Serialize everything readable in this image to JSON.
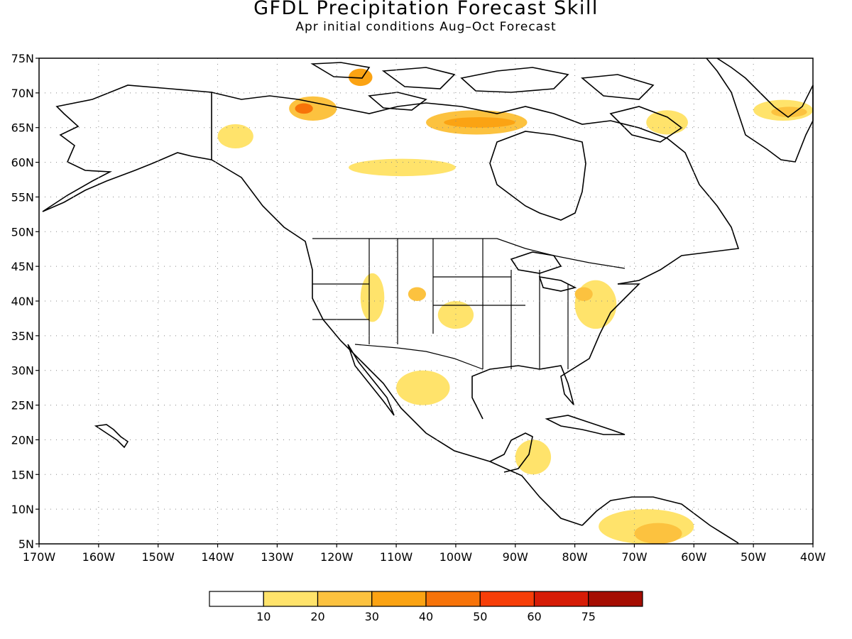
{
  "title": "GFDL Precipitation Forecast Skill",
  "subtitle": "Apr initial conditions  Aug–Oct Forecast",
  "map": {
    "lon_range": [
      -170,
      -40
    ],
    "lat_range": [
      5,
      75
    ],
    "lat_labels": [
      "75N",
      "70N",
      "65N",
      "60N",
      "55N",
      "50N",
      "45N",
      "40N",
      "35N",
      "30N",
      "25N",
      "20N",
      "15N",
      "10N",
      "5N"
    ],
    "lon_labels": [
      "170W",
      "160W",
      "150W",
      "140W",
      "130W",
      "120W",
      "110W",
      "100W",
      "90W",
      "80W",
      "70W",
      "60W",
      "50W",
      "40W"
    ],
    "gridlines": "dotted"
  },
  "legend": {
    "labels": [
      "10",
      "20",
      "30",
      "40",
      "50",
      "60",
      "75"
    ],
    "colors": [
      "#ffffff",
      "#ffe36b",
      "#fcc23f",
      "#fba313",
      "#f77309",
      "#f73e08",
      "#d61c06",
      "#a50d02"
    ]
  },
  "skill_regions": [
    {
      "lon": [
        -128,
        -120
      ],
      "lat": [
        66,
        69.5
      ],
      "level": 2,
      "name": "nw-canada-1"
    },
    {
      "lon": [
        -127,
        -124
      ],
      "lat": [
        67,
        68.5
      ],
      "level": 4,
      "name": "nw-canada-core"
    },
    {
      "lon": [
        -118,
        -114
      ],
      "lat": [
        71,
        73.5
      ],
      "level": 3,
      "name": "banks-island"
    },
    {
      "lon": [
        -140,
        -134
      ],
      "lat": [
        62,
        65.5
      ],
      "level": 1,
      "name": "yukon"
    },
    {
      "lon": [
        -105,
        -88
      ],
      "lat": [
        64,
        67.5
      ],
      "level": 2,
      "name": "nunavut-1"
    },
    {
      "lon": [
        -102,
        -90
      ],
      "lat": [
        65,
        66.5
      ],
      "level": 3,
      "name": "nunavut-core"
    },
    {
      "lon": [
        -118,
        -100
      ],
      "lat": [
        58,
        60.5
      ],
      "level": 1,
      "name": "nwt-south"
    },
    {
      "lon": [
        -68,
        -61
      ],
      "lat": [
        64,
        67.5
      ],
      "level": 1,
      "name": "baffin-east"
    },
    {
      "lon": [
        -50,
        -40
      ],
      "lat": [
        66,
        69
      ],
      "level": 1,
      "name": "greenland-east"
    },
    {
      "lon": [
        -47,
        -41
      ],
      "lat": [
        66.5,
        68
      ],
      "level": 2,
      "name": "greenland-core"
    },
    {
      "lon": [
        -116,
        -112
      ],
      "lat": [
        37,
        44
      ],
      "level": 1,
      "name": "great-basin"
    },
    {
      "lon": [
        -108,
        -105
      ],
      "lat": [
        40,
        42
      ],
      "level": 2,
      "name": "colorado"
    },
    {
      "lon": [
        -103,
        -97
      ],
      "lat": [
        36,
        40
      ],
      "level": 1,
      "name": "plains"
    },
    {
      "lon": [
        -80,
        -73
      ],
      "lat": [
        36,
        43
      ],
      "level": 1,
      "name": "mid-atlantic"
    },
    {
      "lon": [
        -80,
        -77
      ],
      "lat": [
        40,
        42
      ],
      "level": 2,
      "name": "pennsylvania"
    },
    {
      "lon": [
        -110,
        -101
      ],
      "lat": [
        25,
        30
      ],
      "level": 1,
      "name": "mexico-north"
    },
    {
      "lon": [
        -90,
        -84
      ],
      "lat": [
        15,
        20
      ],
      "level": 1,
      "name": "central-america"
    },
    {
      "lon": [
        -76,
        -60
      ],
      "lat": [
        5,
        10
      ],
      "level": 1,
      "name": "venezuela"
    },
    {
      "lon": [
        -70,
        -62
      ],
      "lat": [
        5,
        8
      ],
      "level": 2,
      "name": "venezuela-core"
    }
  ]
}
